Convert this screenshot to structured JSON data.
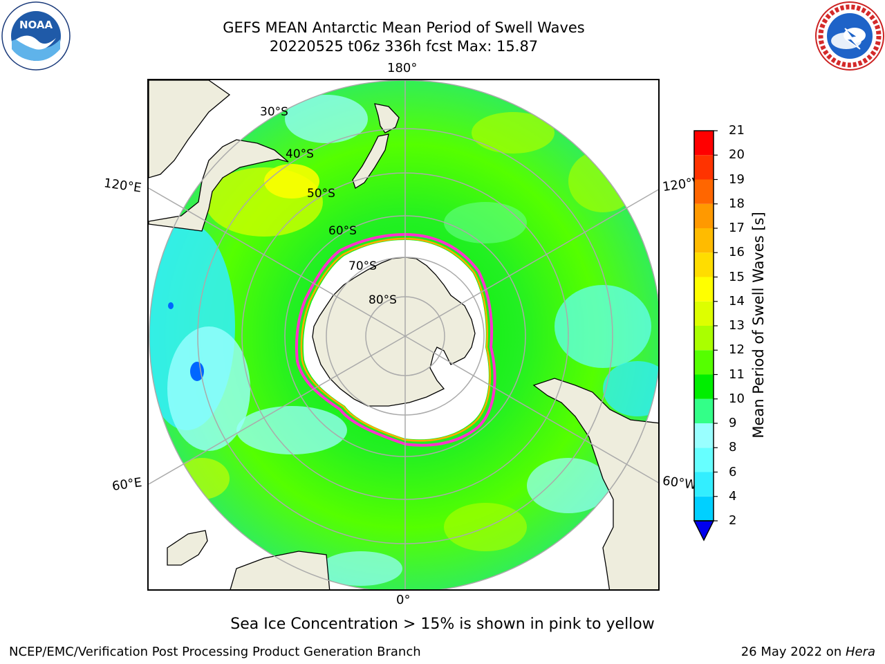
{
  "title": {
    "line1": "GEFS MEAN Antarctic Mean Period of Swell Waves",
    "line2": "20220525 t06z 336h fcst   Max: 15.87"
  },
  "logos": {
    "left": "NOAA",
    "right": "NATIONAL WEATHER SERVICE"
  },
  "map": {
    "projection": "south-polar-stereographic",
    "longitude_labels": {
      "top": "180°",
      "bottom": "0°",
      "upper_left": "120°E",
      "upper_right": "120°W",
      "lower_left": "60°E",
      "lower_right": "60°W"
    },
    "latitude_labels": [
      "30°S",
      "40°S",
      "50°S",
      "60°S",
      "70°S",
      "80°S"
    ],
    "colors": {
      "land": "#EEEDDD",
      "ice_edge_outer": "#FF33CC",
      "ice_edge_inner": "#FFAA00",
      "grid": "#AAAAAA"
    }
  },
  "colorbar": {
    "label": "Mean Period of Swell Waves [s]",
    "ticks": [
      "2",
      "4",
      "6",
      "8",
      "9",
      "10",
      "11",
      "12",
      "13",
      "14",
      "15",
      "16",
      "17",
      "18",
      "19",
      "20",
      "21"
    ],
    "colors": [
      "#0066FF",
      "#00D0FF",
      "#33EEFF",
      "#66FFFF",
      "#99FFFF",
      "#33FF88",
      "#00EE00",
      "#55FF00",
      "#AAFF00",
      "#DDFF00",
      "#FFFF00",
      "#FFDD00",
      "#FFBB00",
      "#FF9900",
      "#FF6600",
      "#FF3300",
      "#FF0000"
    ],
    "under_color": "#0000EE"
  },
  "caption": "Sea Ice Concentration > 15% is shown in pink to yellow",
  "footer": {
    "left": "NCEP/EMC/Verification Post Processing Product Generation Branch",
    "right_date": "26 May 2022 on ",
    "right_host": "Hera"
  }
}
